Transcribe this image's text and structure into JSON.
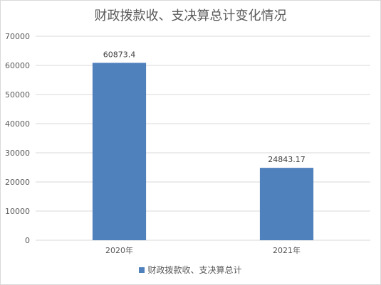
{
  "chart_data": {
    "type": "bar",
    "title": "财政拨款收、支决算总计变化情况",
    "xlabel": "",
    "ylabel": "",
    "categories": [
      "2020年",
      "2021年"
    ],
    "series": [
      {
        "name": "财政拨款收、支决算总计",
        "values": [
          60873.4,
          24843.17
        ],
        "value_labels": [
          "60873.4",
          "24843.17"
        ],
        "color": "#4f81bd"
      }
    ],
    "ylim": [
      0,
      70000
    ],
    "yticks": [
      0,
      10000,
      20000,
      30000,
      40000,
      50000,
      60000,
      70000
    ],
    "ytick_labels": [
      "0",
      "10000",
      "20000",
      "30000",
      "40000",
      "50000",
      "60000",
      "70000"
    ],
    "grid": true,
    "legend_position": "bottom"
  }
}
